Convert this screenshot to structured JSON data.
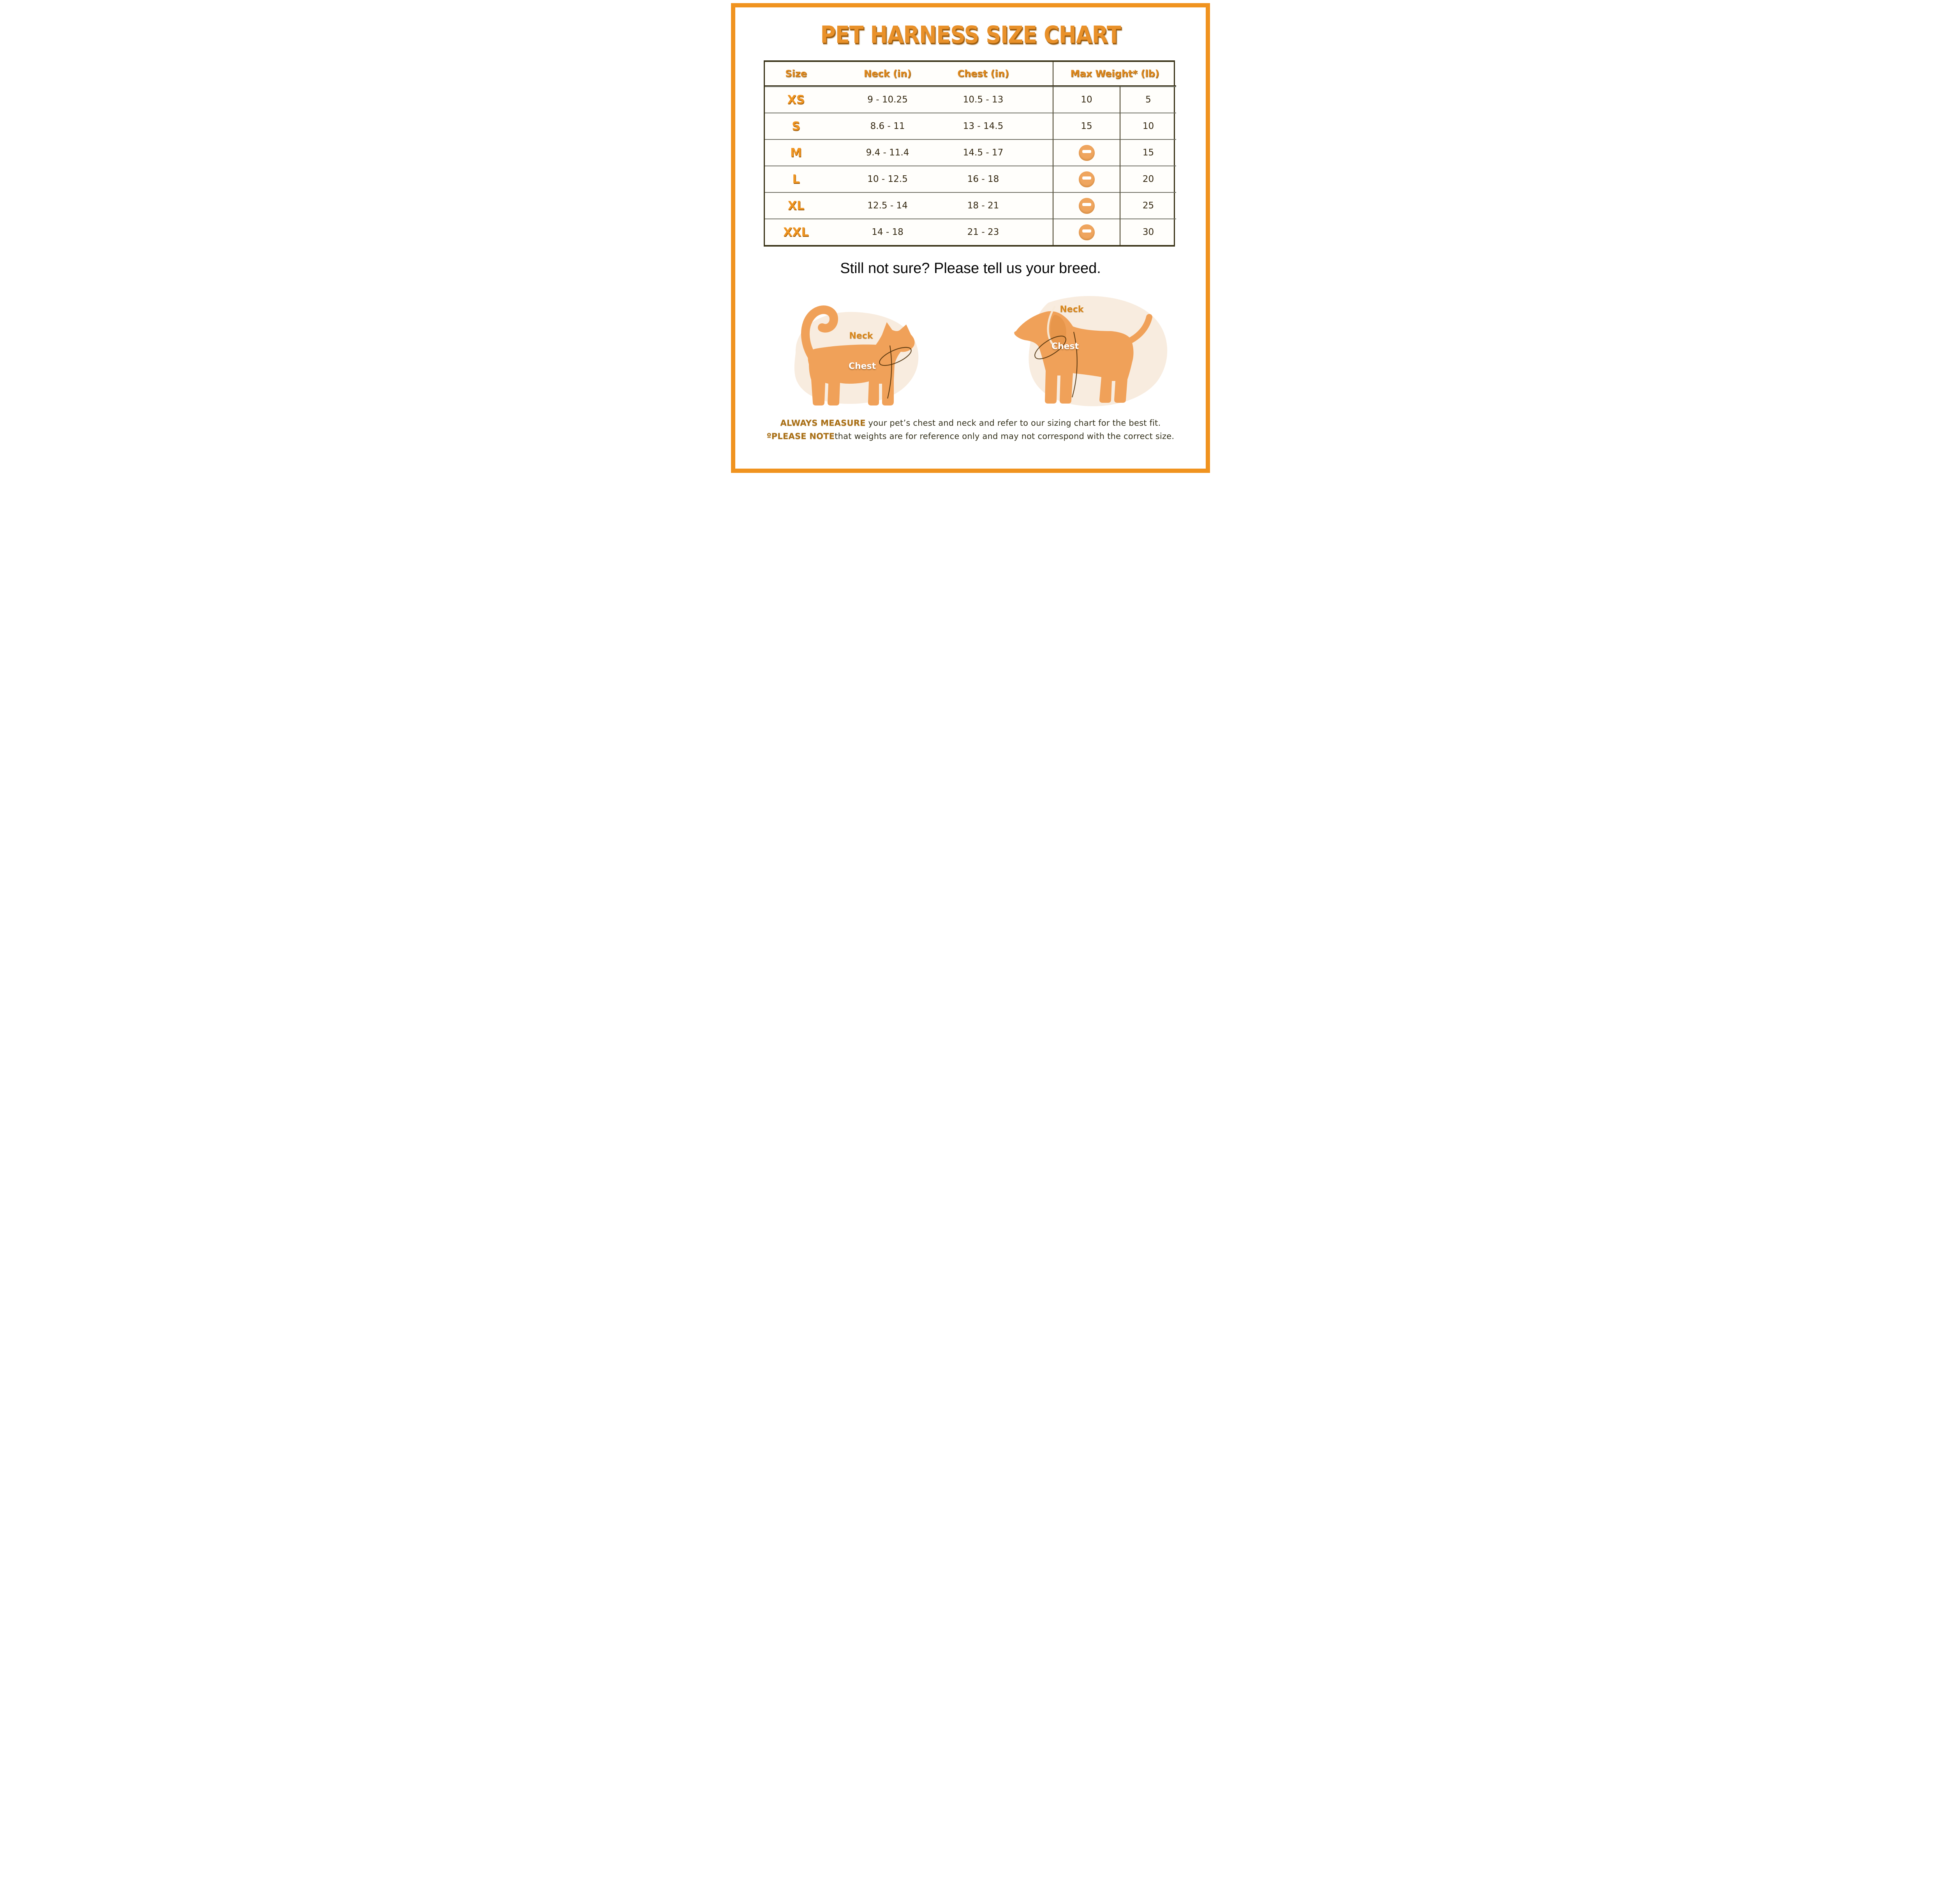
{
  "title": "PET HARNESS SIZE CHART",
  "table": {
    "headers": {
      "size": "Size",
      "neck": "Neck (in)",
      "chest": "Chest (in)",
      "max_weight": "Max Weight* (lb)"
    },
    "rows": [
      {
        "size": "XS",
        "neck": "9 - 10.25",
        "chest": "10.5 - 13",
        "weights": [
          {
            "text": "10"
          },
          {
            "text": "5"
          }
        ]
      },
      {
        "size": "S",
        "neck": "8.6 - 11",
        "chest": "13 - 14.5",
        "weights": [
          {
            "text": "15"
          },
          {
            "text": "10"
          }
        ]
      },
      {
        "size": "M",
        "neck": "9.4 - 11.4",
        "chest": "14.5 - 17",
        "weights": [
          {
            "icon": "minus-badge-icon"
          },
          {
            "text": "15"
          }
        ]
      },
      {
        "size": "L",
        "neck": "10 - 12.5",
        "chest": "16 - 18",
        "weights": [
          {
            "icon": "minus-badge-icon"
          },
          {
            "text": "20"
          }
        ]
      },
      {
        "size": "XL",
        "neck": "12.5 - 14",
        "chest": "18 - 21",
        "weights": [
          {
            "icon": "minus-badge-icon"
          },
          {
            "text": "25"
          }
        ]
      },
      {
        "size": "XXL",
        "neck": "14 - 18",
        "chest": "21 - 23",
        "weights": [
          {
            "icon": "minus-badge-icon"
          },
          {
            "text": "30"
          }
        ]
      }
    ]
  },
  "prompt": "Still not sure? Please tell us your breed.",
  "figures": {
    "cat": {
      "icon": "cat-silhouette-icon",
      "neck_label": "Neck",
      "chest_label": "Chest"
    },
    "dog": {
      "icon": "dog-silhouette-icon",
      "neck_label": "Neck",
      "chest_label": "Chest"
    }
  },
  "footer": {
    "measure_bold": "ALWAYS MEASURE",
    "measure_rest": " your pet’s chest and neck and refer to our sizing chart for the best fit.",
    "note_bold": "ºPLEASE NOTE",
    "note_rest": "that weights are for reference only and may not correspond with the correct size."
  },
  "colors": {
    "accent_orange": "#e9912a",
    "frame_orange": "#f0931f",
    "table_border": "#3a3318",
    "row_divider": "#6d6d62",
    "value_text": "#332710",
    "badge_orange": "#efa55e",
    "silhouette_orange": "#f0a159",
    "blob_cream": "#f8ecdf",
    "neck_label_orange": "#d8871c",
    "footer_bold_orange": "#a96f15"
  }
}
